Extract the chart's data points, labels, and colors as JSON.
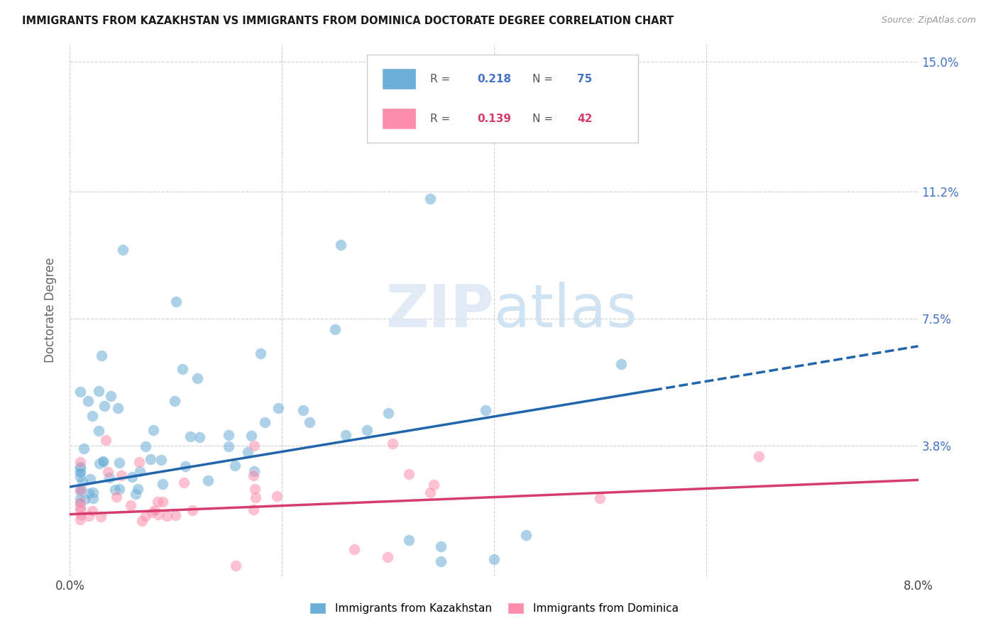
{
  "title": "IMMIGRANTS FROM KAZAKHSTAN VS IMMIGRANTS FROM DOMINICA DOCTORATE DEGREE CORRELATION CHART",
  "source": "Source: ZipAtlas.com",
  "ylabel": "Doctorate Degree",
  "yticks": [
    0.0,
    0.038,
    0.075,
    0.112,
    0.15
  ],
  "ytick_labels": [
    "",
    "3.8%",
    "7.5%",
    "11.2%",
    "15.0%"
  ],
  "xlim": [
    0.0,
    0.08
  ],
  "ylim": [
    0.0,
    0.155
  ],
  "kazakhstan_R": 0.218,
  "kazakhstan_N": 75,
  "dominica_R": 0.139,
  "dominica_N": 42,
  "kazakhstan_color": "#6baed6",
  "dominica_color": "#fc8eac",
  "kazakhstan_line_color": "#2166ac",
  "dominica_line_color": "#d63d6f",
  "watermark_zip": "ZIP",
  "watermark_atlas": "atlas",
  "background_color": "#ffffff",
  "kaz_line_start_x": 0.0,
  "kaz_line_end_solid_x": 0.055,
  "kaz_line_end_dash_x": 0.08,
  "kaz_line_start_y": 0.026,
  "kaz_line_end_y": 0.067,
  "dom_line_start_x": 0.0,
  "dom_line_end_x": 0.08,
  "dom_line_start_y": 0.018,
  "dom_line_end_y": 0.028
}
